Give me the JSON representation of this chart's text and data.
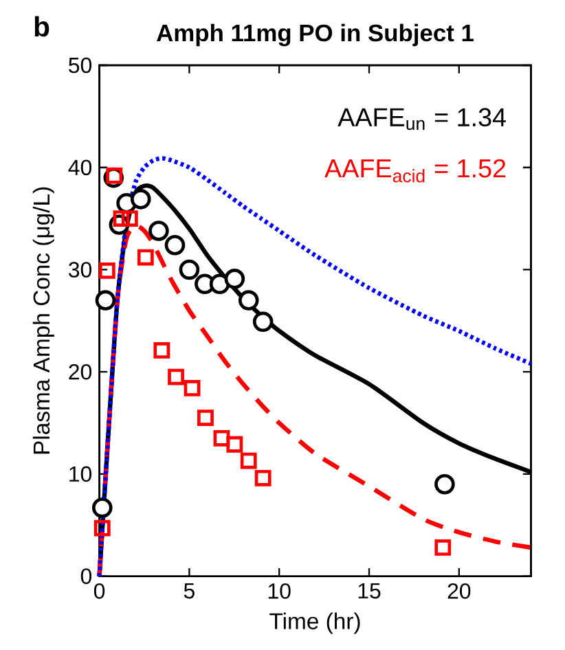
{
  "chart_data": {
    "type": "line",
    "title": "Amph 11mg PO in Subject 1",
    "xlabel": "Time (hr)",
    "ylabel": "Plasma Amph Conc (μg/L)",
    "annotations": [
      "b",
      "AAFE$_{un}$ = 1.34",
      "AAFE$_{acid}$ = 1.52"
    ],
    "xlim": [
      0,
      24
    ],
    "ylim": [
      0,
      50
    ],
    "xticks": [
      0,
      5,
      10,
      15,
      20
    ],
    "yticks": [
      0,
      10,
      20,
      30,
      40,
      50
    ],
    "grid": false,
    "series": [
      {
        "color": "#000000",
        "line_style": "solid",
        "marker": "none",
        "x": [
          0,
          0.5,
          1,
          1.5,
          2,
          2.5,
          3,
          4,
          5,
          6,
          7,
          8,
          9,
          10,
          12,
          15,
          18,
          20,
          22,
          24
        ],
        "values": [
          0,
          14,
          27,
          34,
          37.5,
          38.2,
          38,
          36.2,
          34,
          31.4,
          29.2,
          27.2,
          25.5,
          24,
          21.6,
          18.8,
          15,
          13,
          11.5,
          10.2
        ]
      },
      {
        "color": "#ff0000",
        "line_style": "dashed",
        "marker": "none",
        "x": [
          0,
          0.5,
          1,
          1.5,
          2,
          2.5,
          3,
          4,
          5,
          6,
          7,
          8,
          9,
          10,
          12,
          15,
          18,
          20,
          22,
          24
        ],
        "values": [
          0,
          14,
          27,
          33,
          34.3,
          33.8,
          32.5,
          29,
          26,
          23.5,
          21,
          18.8,
          16.8,
          15,
          12,
          8.8,
          5.6,
          4.3,
          3.4,
          2.8
        ]
      },
      {
        "color": "#0000ff",
        "line_style": "dotted",
        "marker": "none",
        "x": [
          0,
          0.5,
          1,
          1.5,
          2,
          2.5,
          3,
          3.5,
          4,
          5,
          6,
          7,
          8,
          9,
          10,
          12,
          15,
          18,
          20,
          22,
          24
        ],
        "values": [
          0,
          14,
          27,
          34.5,
          38.5,
          40,
          40.7,
          40.9,
          40.7,
          40,
          38.8,
          37.5,
          36.2,
          35,
          33.8,
          31.4,
          28.2,
          25.5,
          24,
          22.3,
          20.8
        ]
      },
      {
        "type": "scatter",
        "color": "#000000",
        "marker": "circle",
        "x": [
          0.16,
          0.34,
          0.79,
          1.1,
          1.51,
          2.3,
          3.3,
          4.2,
          5.0,
          5.86,
          6.69,
          7.52,
          8.3,
          9.1,
          19.2
        ],
        "values": [
          6.7,
          27.0,
          39.0,
          34.4,
          36.5,
          36.9,
          33.8,
          32.4,
          30.0,
          28.6,
          28.6,
          29.1,
          27.0,
          24.9,
          9.0
        ]
      },
      {
        "type": "scatter",
        "color": "#ff0000",
        "marker": "square",
        "x": [
          0.16,
          0.43,
          0.83,
          1.22,
          1.69,
          2.57,
          3.47,
          4.26,
          5.16,
          5.9,
          6.8,
          7.52,
          8.3,
          9.1,
          19.1
        ],
        "values": [
          4.7,
          29.9,
          39.2,
          35.0,
          35.0,
          31.2,
          22.1,
          19.5,
          18.4,
          15.5,
          13.5,
          12.9,
          11.3,
          9.6,
          2.8
        ]
      }
    ]
  }
}
